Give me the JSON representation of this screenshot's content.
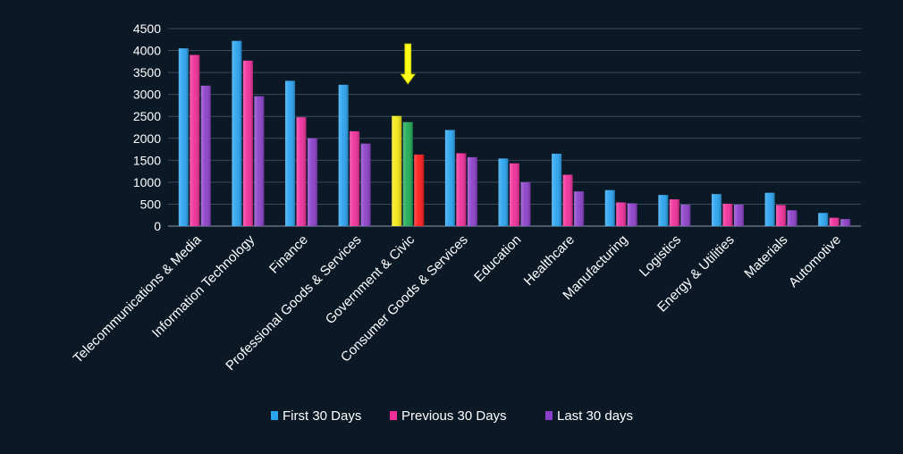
{
  "chart_data": {
    "type": "bar",
    "categories": [
      "Telecommunications & Media",
      "Information Technology",
      "Finance",
      "Professional Goods & Services",
      "Government & Civic",
      "Consumer Goods &  Services",
      "Education",
      "Healthcare",
      "Manufacturing",
      "Logistics",
      "Energy & Utilities",
      "Materials",
      "Automotive"
    ],
    "series": [
      {
        "name": "First 30 Days",
        "values": [
          4050,
          4220,
          3310,
          3220,
          2510,
          2190,
          1540,
          1650,
          820,
          710,
          730,
          760,
          300
        ],
        "color": "#29a3f0"
      },
      {
        "name": "Previous 30 Days",
        "values": [
          3900,
          3770,
          2480,
          2160,
          2370,
          1660,
          1430,
          1170,
          540,
          610,
          510,
          480,
          190
        ],
        "color": "#f02d9a"
      },
      {
        "name": "Last 30 days",
        "values": [
          3200,
          2960,
          2000,
          1880,
          1630,
          1570,
          1000,
          790,
          520,
          490,
          490,
          360,
          160
        ],
        "color": "#8b3fc8"
      }
    ],
    "highlight": {
      "category": "Government & Civic",
      "bar_colors": [
        "#f3e814",
        "#1faa55",
        "#ff1a1a"
      ],
      "arrow": "down-arrow",
      "arrow_color": "#ffff1a"
    },
    "yticks": [
      "0",
      "500",
      "1000",
      "1500",
      "2000",
      "2500",
      "3000",
      "3500",
      "4000",
      "4500"
    ],
    "ylim": [
      0,
      4500
    ],
    "grid": true,
    "legend_position": "bottom",
    "title": "",
    "xlabel": "",
    "ylabel": ""
  }
}
